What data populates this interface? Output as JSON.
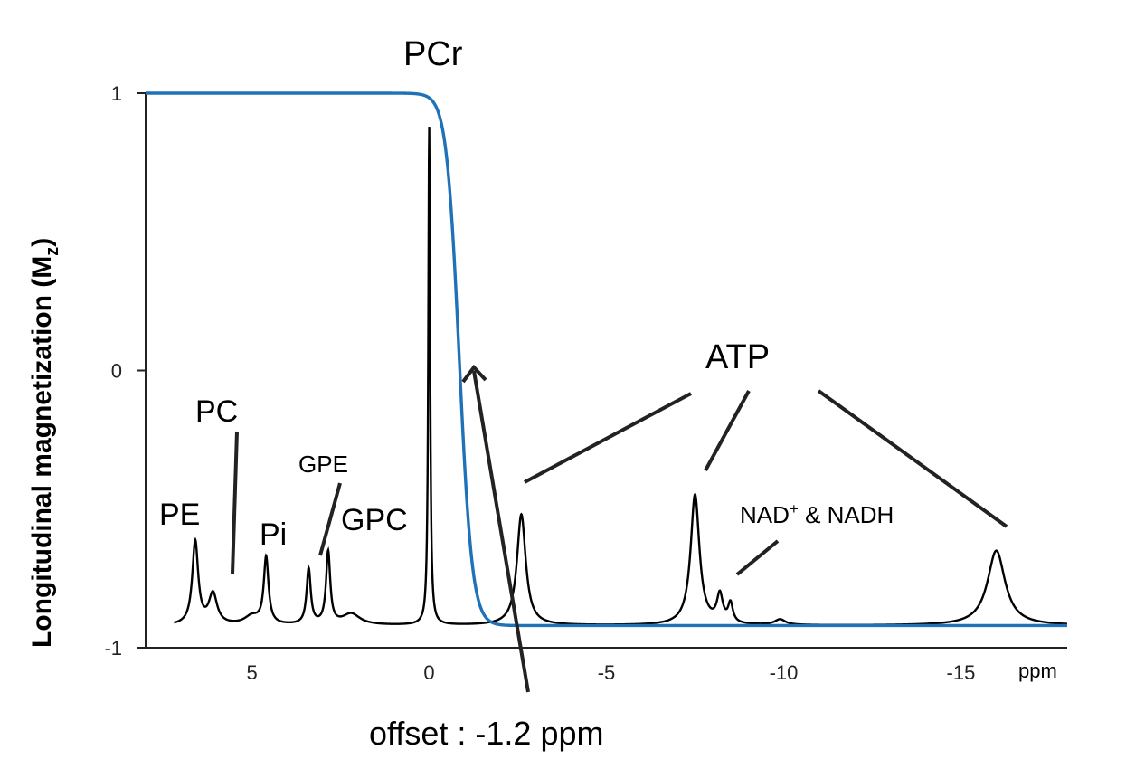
{
  "chart_data": {
    "type": "line",
    "title": "",
    "xlabel": "ppm",
    "ylabel": "Longitudinal magnetization (M",
    "ylabel_subscript": "z",
    "ylabel_close": ")",
    "x_reversed": true,
    "xlim": [
      8,
      -18
    ],
    "ylim": [
      -1,
      1
    ],
    "x_ticks": [
      {
        "value": 5,
        "label": "5"
      },
      {
        "value": 0,
        "label": "0"
      },
      {
        "value": -5,
        "label": "-5"
      },
      {
        "value": -10,
        "label": "-10"
      },
      {
        "value": -15,
        "label": "-15"
      }
    ],
    "y_ticks": [
      {
        "value": 1,
        "label": "1"
      },
      {
        "value": 0,
        "label": "0"
      },
      {
        "value": -1,
        "label": "-1"
      }
    ],
    "series": [
      {
        "role": "magnetization",
        "color": "#1f72b8",
        "transition_center_ppm": -0.85,
        "transition_width_ppm": 0.18,
        "high": 1.0,
        "low": -0.92
      },
      {
        "role": "spectrum",
        "color": "#000000",
        "baseline": -0.92,
        "peaks": [
          {
            "ppm": 6.6,
            "height": 0.3,
            "width": 0.1
          },
          {
            "ppm": 6.1,
            "height": 0.11,
            "width": 0.14
          },
          {
            "ppm": 5.0,
            "height": 0.03,
            "width": 0.25
          },
          {
            "ppm": 4.6,
            "height": 0.24,
            "width": 0.08
          },
          {
            "ppm": 3.4,
            "height": 0.2,
            "width": 0.07
          },
          {
            "ppm": 2.85,
            "height": 0.26,
            "width": 0.07
          },
          {
            "ppm": 2.2,
            "height": 0.04,
            "width": 0.3
          },
          {
            "ppm": 0.0,
            "height": 1.8,
            "width": 0.03
          },
          {
            "ppm": -2.6,
            "height": 0.4,
            "width": 0.15
          },
          {
            "ppm": -7.5,
            "height": 0.47,
            "width": 0.15
          },
          {
            "ppm": -8.2,
            "height": 0.1,
            "width": 0.1
          },
          {
            "ppm": -8.5,
            "height": 0.07,
            "width": 0.08
          },
          {
            "ppm": -9.9,
            "height": 0.02,
            "width": 0.18
          },
          {
            "ppm": -16.0,
            "height": 0.27,
            "width": 0.3
          }
        ]
      }
    ],
    "annotations": {
      "PCr": "PCr",
      "PC": "PC",
      "PE": "PE",
      "Pi": "Pi",
      "GPE": "GPE",
      "GPC": "GPC",
      "ATP": "ATP",
      "NAD_base": "NAD",
      "NAD_sup": "+",
      "NAD_rest": " & NADH",
      "offset": "offset : -1.2 ppm"
    }
  }
}
